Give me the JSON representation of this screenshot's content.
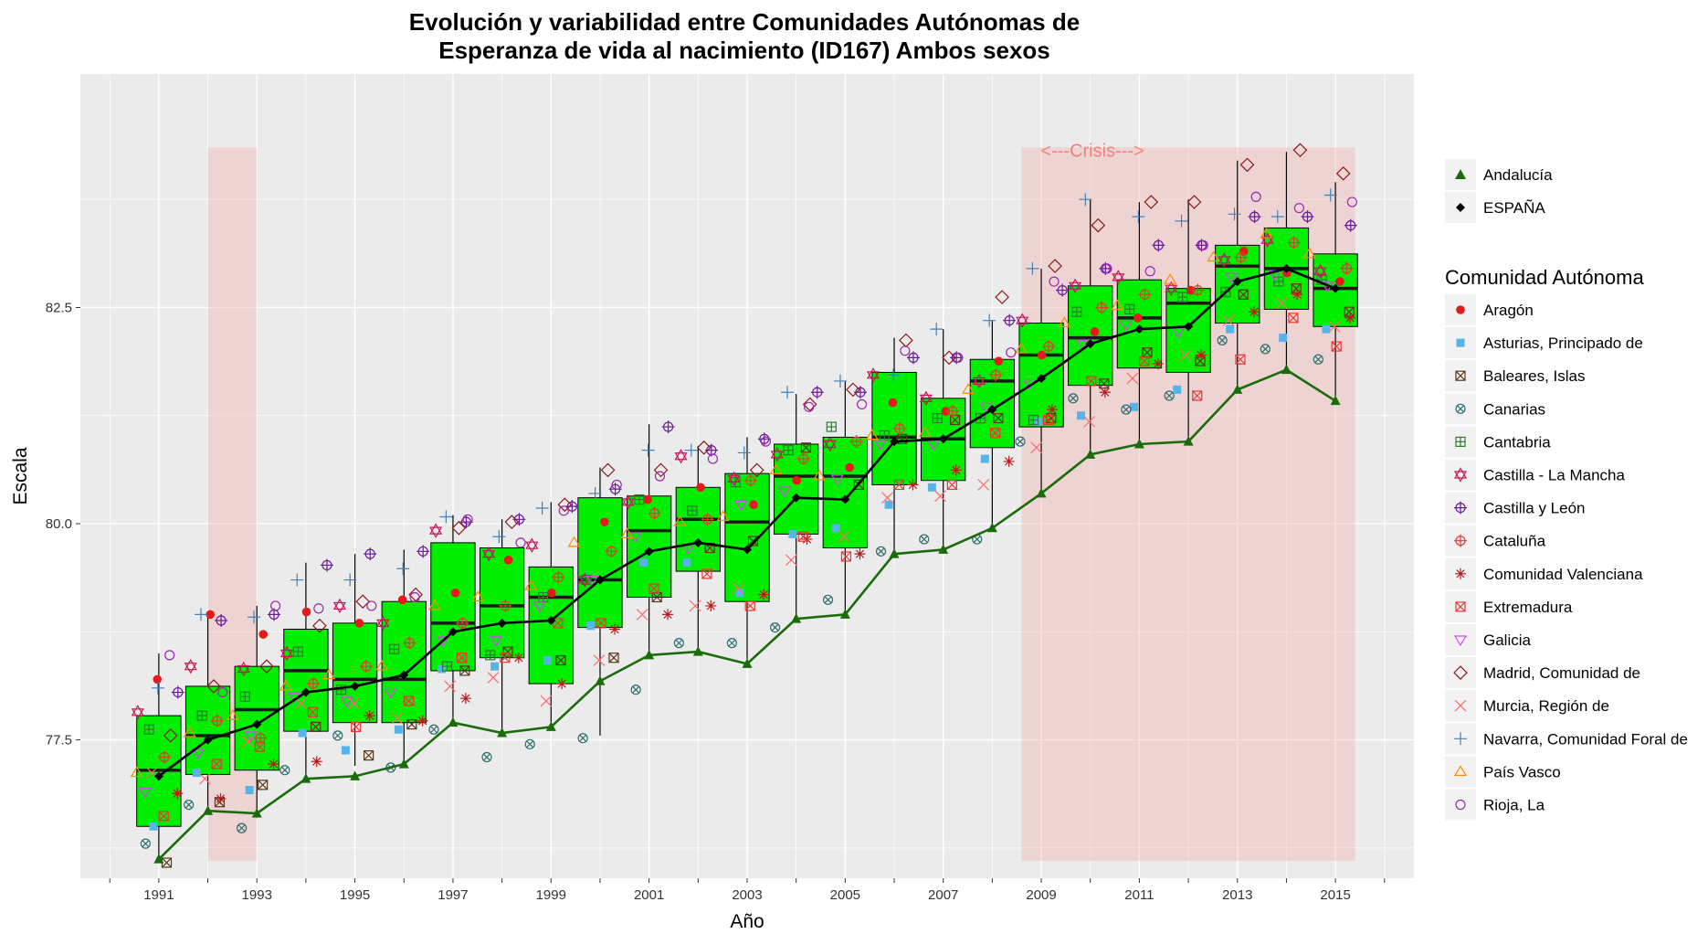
{
  "chart_data": {
    "type": "box",
    "title": "Evolución y variabilidad entre Comunidades Autónomas de",
    "subtitle": "Esperanza de vida al nacimiento (ID167) Ambos sexos",
    "xlabel": "Año",
    "ylabel": "Escala",
    "x_ticks": [
      "1991",
      "1993",
      "1995",
      "1997",
      "1999",
      "2001",
      "2003",
      "2005",
      "2007",
      "2009",
      "2011",
      "2013",
      "2015"
    ],
    "y_ticks": [
      "77.5",
      "80.0",
      "82.5"
    ],
    "ylim": [
      75.9,
      85.2
    ],
    "xlim": [
      1989.4,
      2016.6
    ],
    "grid": true,
    "legend_position": "right",
    "shaded_periods": [
      {
        "from": 1992,
        "to": 1993,
        "label": ""
      },
      {
        "from": 2008.6,
        "to": 2015.4,
        "label": "<---Crisis--->"
      }
    ],
    "boxes": [
      {
        "year": 1991,
        "min": 76.1,
        "q1": 76.5,
        "median": 77.15,
        "q3": 77.78,
        "max": 78.5
      },
      {
        "year": 1992,
        "min": 76.7,
        "q1": 77.1,
        "median": 77.55,
        "q3": 78.12,
        "max": 78.95
      },
      {
        "year": 1993,
        "min": 76.6,
        "q1": 77.15,
        "median": 77.85,
        "q3": 78.35,
        "max": 79.05
      },
      {
        "year": 1994,
        "min": 77.1,
        "q1": 77.6,
        "median": 78.3,
        "q3": 78.78,
        "max": 79.55
      },
      {
        "year": 1995,
        "min": 77.2,
        "q1": 77.7,
        "median": 78.2,
        "q3": 78.85,
        "max": 79.65
      },
      {
        "year": 1996,
        "min": 77.25,
        "q1": 77.7,
        "median": 78.2,
        "q3": 79.1,
        "max": 79.7
      },
      {
        "year": 1997,
        "min": 77.7,
        "q1": 78.3,
        "median": 78.85,
        "q3": 79.78,
        "max": 80.1
      },
      {
        "year": 1998,
        "min": 77.6,
        "q1": 78.45,
        "median": 79.05,
        "q3": 79.72,
        "max": 80.05
      },
      {
        "year": 1999,
        "min": 77.65,
        "q1": 78.15,
        "median": 79.15,
        "q3": 79.5,
        "max": 80.25
      },
      {
        "year": 2000,
        "min": 77.55,
        "q1": 78.8,
        "median": 79.35,
        "q3": 80.3,
        "max": 80.65
      },
      {
        "year": 2001,
        "min": 78.45,
        "q1": 79.15,
        "median": 79.92,
        "q3": 80.32,
        "max": 81.15
      },
      {
        "year": 2002,
        "min": 78.5,
        "q1": 79.45,
        "median": 80.05,
        "q3": 80.42,
        "max": 80.9
      },
      {
        "year": 2003,
        "min": 78.4,
        "q1": 79.1,
        "median": 80.02,
        "q3": 80.58,
        "max": 81.0
      },
      {
        "year": 2004,
        "min": 78.9,
        "q1": 79.88,
        "median": 80.55,
        "q3": 80.92,
        "max": 81.5
      },
      {
        "year": 2005,
        "min": 78.95,
        "q1": 79.72,
        "median": 80.55,
        "q3": 81.0,
        "max": 81.65
      },
      {
        "year": 2006,
        "min": 79.65,
        "q1": 80.45,
        "median": 81.0,
        "q3": 81.75,
        "max": 82.15
      },
      {
        "year": 2007,
        "min": 79.7,
        "q1": 80.5,
        "median": 80.98,
        "q3": 81.45,
        "max": 82.25
      },
      {
        "year": 2008,
        "min": 79.95,
        "q1": 80.88,
        "median": 81.65,
        "q3": 81.9,
        "max": 82.35
      },
      {
        "year": 2009,
        "min": 80.35,
        "q1": 81.12,
        "median": 81.95,
        "q3": 82.32,
        "max": 82.95
      },
      {
        "year": 2010,
        "min": 80.8,
        "q1": 81.6,
        "median": 82.15,
        "q3": 82.75,
        "max": 83.75
      },
      {
        "year": 2011,
        "min": 80.92,
        "q1": 81.8,
        "median": 82.38,
        "q3": 82.82,
        "max": 83.72
      },
      {
        "year": 2012,
        "min": 80.95,
        "q1": 81.75,
        "median": 82.55,
        "q3": 82.72,
        "max": 83.75
      },
      {
        "year": 2013,
        "min": 81.55,
        "q1": 82.32,
        "median": 82.98,
        "q3": 83.22,
        "max": 84.2
      },
      {
        "year": 2014,
        "min": 81.78,
        "q1": 82.48,
        "median": 82.95,
        "q3": 83.42,
        "max": 84.3
      },
      {
        "year": 2015,
        "min": 81.42,
        "q1": 82.28,
        "median": 82.72,
        "q3": 83.12,
        "max": 83.95
      }
    ],
    "series": [
      {
        "name": "Andalucía",
        "x": [
          1991,
          1992,
          1993,
          1994,
          1995,
          1996,
          1997,
          1998,
          1999,
          2000,
          2001,
          2002,
          2003,
          2004,
          2005,
          2006,
          2007,
          2008,
          2009,
          2010,
          2011,
          2012,
          2013,
          2014,
          2015
        ],
        "values": [
          76.12,
          76.68,
          76.65,
          77.05,
          77.08,
          77.22,
          77.7,
          77.58,
          77.65,
          78.18,
          78.48,
          78.52,
          78.38,
          78.9,
          78.95,
          79.65,
          79.7,
          79.95,
          80.35,
          80.8,
          80.92,
          80.95,
          81.55,
          81.78,
          81.42
        ],
        "color": "#1a6b0a",
        "marker": "triangle"
      },
      {
        "name": "ESPAÑA",
        "x": [
          1991,
          1992,
          1993,
          1994,
          1995,
          1996,
          1997,
          1998,
          1999,
          2000,
          2001,
          2002,
          2003,
          2004,
          2005,
          2006,
          2007,
          2008,
          2009,
          2010,
          2011,
          2012,
          2013,
          2014,
          2015
        ],
        "values": [
          77.08,
          77.5,
          77.68,
          78.05,
          78.12,
          78.25,
          78.75,
          78.85,
          78.88,
          79.35,
          79.68,
          79.78,
          79.7,
          80.3,
          80.28,
          80.95,
          80.98,
          81.32,
          81.68,
          82.08,
          82.25,
          82.28,
          82.8,
          82.95,
          82.72
        ],
        "color": "#000000",
        "marker": "diamond"
      }
    ],
    "community_legend_title": "Comunidad Autónoma",
    "communities": [
      {
        "name": "Aragón",
        "color": "#e41a1c",
        "shape": "dot",
        "offset": 0.05,
        "values": [
          78.2,
          78.95,
          78.72,
          78.98,
          78.85,
          79.12,
          79.2,
          79.58,
          79.2,
          80.02,
          80.28,
          80.42,
          80.22,
          80.5,
          80.65,
          81.4,
          81.3,
          81.88,
          81.95,
          82.22,
          82.38,
          82.7,
          83.15,
          82.9,
          82.8
        ]
      },
      {
        "name": "Asturias, Principado de",
        "color": "#56b4e9",
        "shape": "square",
        "offset": -0.15,
        "values": [
          76.5,
          77.12,
          76.92,
          77.58,
          77.38,
          77.62,
          78.32,
          78.35,
          78.42,
          78.82,
          79.55,
          79.55,
          79.2,
          79.88,
          79.95,
          80.22,
          80.42,
          80.75,
          81.18,
          81.25,
          81.35,
          81.55,
          82.25,
          82.15,
          82.25
        ]
      },
      {
        "name": "Baleares, Islas",
        "color": "#5a3a1a",
        "shape": "square-x",
        "offset": 0.2,
        "values": [
          76.08,
          76.78,
          76.98,
          77.65,
          77.32,
          77.68,
          78.3,
          78.52,
          78.42,
          78.45,
          79.15,
          79.72,
          79.8,
          80.88,
          80.45,
          80.98,
          81.2,
          81.22,
          81.22,
          81.62,
          81.98,
          81.88,
          82.65,
          82.72,
          82.45
        ]
      },
      {
        "name": "Canarias",
        "color": "#2f6f6f",
        "shape": "circle-x",
        "offset": -0.35,
        "values": [
          76.3,
          76.75,
          76.48,
          77.15,
          77.55,
          77.18,
          77.62,
          77.3,
          77.45,
          77.52,
          78.08,
          78.62,
          78.62,
          78.8,
          79.12,
          79.68,
          79.82,
          79.82,
          80.95,
          81.45,
          81.32,
          81.48,
          82.12,
          82.02,
          81.9
        ]
      },
      {
        "name": "Cantabria",
        "color": "#2e7d32",
        "shape": "square-plus",
        "offset": -0.2,
        "values": [
          77.62,
          77.78,
          78.0,
          78.52,
          78.08,
          78.55,
          78.35,
          78.48,
          79.15,
          79.35,
          80.28,
          80.15,
          80.48,
          80.85,
          81.12,
          81.02,
          81.22,
          81.22,
          81.2,
          82.45,
          82.48,
          82.62,
          82.68,
          82.8,
          82.82
        ]
      },
      {
        "name": "Castilla - La Mancha",
        "color": "#c2185b",
        "shape": "hexagram",
        "offset": -0.35,
        "values": [
          77.82,
          78.35,
          78.32,
          78.5,
          79.05,
          78.85,
          79.92,
          79.65,
          79.75,
          79.35,
          80.25,
          80.78,
          80.52,
          80.8,
          80.92,
          81.72,
          81.45,
          81.65,
          82.35,
          82.75,
          82.85,
          82.72,
          83.05,
          83.28,
          82.92
        ]
      },
      {
        "name": "Castilla y León",
        "color": "#6a1b9a",
        "shape": "circle-plus",
        "offset": 0.35,
        "values": [
          78.05,
          78.88,
          78.95,
          79.52,
          79.65,
          79.68,
          80.02,
          80.05,
          80.2,
          80.4,
          81.12,
          80.85,
          80.98,
          81.52,
          81.52,
          81.92,
          81.92,
          82.35,
          82.7,
          82.95,
          83.22,
          83.22,
          83.55,
          83.55,
          83.45
        ]
      },
      {
        "name": "Cataluña",
        "color": "#e53935",
        "shape": "circle-plus",
        "offset": 0.15,
        "values": [
          77.3,
          77.72,
          77.52,
          78.15,
          78.35,
          78.62,
          78.85,
          79.05,
          79.38,
          79.68,
          80.12,
          80.05,
          80.5,
          80.75,
          80.95,
          81.1,
          81.3,
          81.72,
          82.05,
          82.5,
          82.65,
          82.7,
          83.08,
          83.25,
          82.95
        ]
      },
      {
        "name": "Comunidad Valenciana",
        "color": "#b71c1c",
        "shape": "asterisk",
        "offset": 0.3,
        "values": [
          76.88,
          76.82,
          77.22,
          77.25,
          77.78,
          77.72,
          77.98,
          78.45,
          78.15,
          78.78,
          78.95,
          79.05,
          79.18,
          79.82,
          79.65,
          80.45,
          80.62,
          80.72,
          81.32,
          81.52,
          81.85,
          81.95,
          82.45,
          82.65,
          82.38
        ]
      },
      {
        "name": "Extremadura",
        "color": "#e53935",
        "shape": "square-x",
        "offset": 0.1,
        "values": [
          76.62,
          77.22,
          77.42,
          77.82,
          77.65,
          77.95,
          78.45,
          78.45,
          78.85,
          78.85,
          79.25,
          79.42,
          79.05,
          79.85,
          79.62,
          80.45,
          80.45,
          81.05,
          81.2,
          81.65,
          81.88,
          81.48,
          81.9,
          82.38,
          82.05
        ]
      },
      {
        "name": "Galicia",
        "color": "#e040fb",
        "shape": "triangle-down",
        "offset": -0.2,
        "values": [
          76.9,
          77.35,
          77.55,
          78.0,
          77.95,
          78.05,
          78.65,
          78.65,
          79.05,
          79.35,
          79.85,
          79.72,
          80.22,
          80.38,
          80.52,
          80.92,
          80.92,
          81.35,
          81.62,
          82.08,
          82.3,
          82.22,
          82.85,
          82.88,
          82.75
        ]
      },
      {
        "name": "Madrid, Comunidad de",
        "color": "#8b1a1a",
        "shape": "diamond",
        "offset": 0.2,
        "values": [
          77.55,
          78.12,
          78.35,
          78.82,
          79.1,
          79.18,
          79.95,
          80.02,
          80.22,
          80.62,
          80.62,
          80.88,
          80.62,
          81.38,
          81.55,
          82.12,
          81.92,
          82.62,
          82.98,
          83.45,
          83.72,
          83.72,
          84.15,
          84.32,
          84.05
        ]
      },
      {
        "name": "Murcia, Región de",
        "color": "#ff6b6b",
        "shape": "cross",
        "offset": -0.1,
        "values": [
          77.12,
          77.05,
          77.48,
          77.92,
          77.92,
          77.75,
          78.12,
          78.22,
          77.95,
          78.42,
          78.95,
          79.05,
          79.25,
          79.58,
          79.85,
          80.3,
          80.32,
          80.45,
          80.88,
          81.18,
          81.68,
          81.95,
          82.35,
          82.55,
          82.28
        ]
      },
      {
        "name": "Navarra, Comunidad Foral de",
        "color": "#4682b4",
        "shape": "plus",
        "offset": -0.1,
        "values": [
          78.1,
          78.95,
          78.92,
          79.35,
          79.35,
          79.48,
          80.08,
          79.85,
          80.18,
          80.35,
          80.85,
          80.85,
          80.82,
          81.52,
          81.65,
          81.72,
          82.25,
          82.35,
          82.95,
          83.75,
          83.55,
          83.5,
          83.58,
          83.55,
          83.8
        ]
      },
      {
        "name": "País Vasco",
        "color": "#ff8c00",
        "shape": "triangle",
        "offset": -0.45,
        "values": [
          77.12,
          77.58,
          77.78,
          78.12,
          78.25,
          78.35,
          79.05,
          79.15,
          79.28,
          79.78,
          79.88,
          80.02,
          80.08,
          80.62,
          80.55,
          81.02,
          81.05,
          81.55,
          82.02,
          82.32,
          82.52,
          82.82,
          83.08,
          83.35,
          83.12
        ]
      },
      {
        "name": "Rioja, La",
        "color": "#9c27b0",
        "shape": "circle",
        "offset": 0.3,
        "values": [
          78.48,
          78.05,
          79.05,
          79.02,
          79.05,
          79.15,
          80.05,
          79.78,
          80.15,
          80.45,
          80.55,
          80.75,
          80.95,
          81.35,
          81.38,
          82.0,
          81.92,
          81.98,
          82.8,
          82.95,
          82.92,
          83.22,
          83.78,
          83.65,
          83.72
        ]
      }
    ]
  }
}
